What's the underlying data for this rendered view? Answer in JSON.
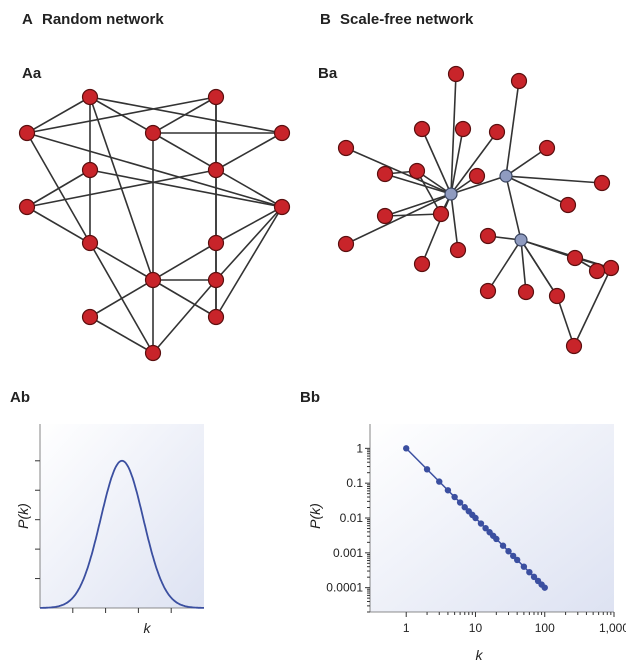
{
  "colors": {
    "node": "#c8242a",
    "hub": "#8f9bc0",
    "curve": "#3b4fa0",
    "panel_start": "#ffffff",
    "panel_end": "#dde2f2"
  },
  "panels": {
    "A": {
      "letter": "A",
      "title": "Random network"
    },
    "B": {
      "letter": "B",
      "title": "Scale-free network"
    },
    "Aa": {
      "label": "Aa"
    },
    "Ba": {
      "label": "Ba"
    },
    "Ab": {
      "label": "Ab",
      "xlabel": "k",
      "ylabel": "P(k)"
    },
    "Bb": {
      "label": "Bb",
      "xlabel": "k",
      "ylabel": "P(k)"
    }
  },
  "random_network": {
    "nodes": [
      {
        "id": "a1"
      },
      {
        "id": "a2"
      },
      {
        "id": "a3"
      },
      {
        "id": "a4"
      },
      {
        "id": "a5"
      },
      {
        "id": "a6"
      },
      {
        "id": "a7"
      },
      {
        "id": "a8"
      },
      {
        "id": "a9"
      },
      {
        "id": "a10"
      },
      {
        "id": "a11"
      },
      {
        "id": "a12"
      },
      {
        "id": "a13"
      },
      {
        "id": "a14"
      },
      {
        "id": "a15"
      },
      {
        "id": "a16"
      }
    ],
    "edges": [
      [
        "a1",
        "a4"
      ],
      [
        "a1",
        "a5"
      ],
      [
        "a1",
        "a6"
      ],
      [
        "a1",
        "a3"
      ],
      [
        "a1",
        "a12"
      ],
      [
        "a3",
        "a2"
      ],
      [
        "a3",
        "a5"
      ],
      [
        "a3",
        "a9"
      ],
      [
        "a3",
        "a16"
      ],
      [
        "a2",
        "a4"
      ],
      [
        "a2",
        "a7"
      ],
      [
        "a2",
        "a14"
      ],
      [
        "a4",
        "a9"
      ],
      [
        "a4",
        "a10"
      ],
      [
        "a5",
        "a7"
      ],
      [
        "a6",
        "a8"
      ],
      [
        "a6",
        "a9"
      ],
      [
        "a6",
        "a10"
      ],
      [
        "a7",
        "a8"
      ],
      [
        "a7",
        "a11"
      ],
      [
        "a8",
        "a12"
      ],
      [
        "a9",
        "a11"
      ],
      [
        "a9",
        "a13"
      ],
      [
        "a9",
        "a14"
      ],
      [
        "a10",
        "a16"
      ],
      [
        "a11",
        "a14"
      ],
      [
        "a11",
        "a15"
      ],
      [
        "a12",
        "a14"
      ],
      [
        "a12",
        "a13"
      ],
      [
        "a13",
        "a16"
      ],
      [
        "a15",
        "a16"
      ]
    ]
  },
  "scale_free_network": {
    "nodes": [
      {
        "id": "h1",
        "hub": true
      },
      {
        "id": "h2",
        "hub": true
      },
      {
        "id": "h3",
        "hub": true
      },
      {
        "id": "b1"
      },
      {
        "id": "b2"
      },
      {
        "id": "b3"
      },
      {
        "id": "b4"
      },
      {
        "id": "b5"
      },
      {
        "id": "b6"
      },
      {
        "id": "b7"
      },
      {
        "id": "b8"
      },
      {
        "id": "b9"
      },
      {
        "id": "b10"
      },
      {
        "id": "b11"
      },
      {
        "id": "b12"
      },
      {
        "id": "b13"
      },
      {
        "id": "b14"
      },
      {
        "id": "b15"
      },
      {
        "id": "b16"
      },
      {
        "id": "b17"
      },
      {
        "id": "b18"
      },
      {
        "id": "b19"
      },
      {
        "id": "b20"
      },
      {
        "id": "b21"
      },
      {
        "id": "b22"
      },
      {
        "id": "b23"
      },
      {
        "id": "b24"
      },
      {
        "id": "b25"
      },
      {
        "id": "b26"
      }
    ],
    "edges": [
      [
        "h1",
        "b1"
      ],
      [
        "h1",
        "b3"
      ],
      [
        "h1",
        "b4"
      ],
      [
        "h1",
        "b5"
      ],
      [
        "h1",
        "b6"
      ],
      [
        "h1",
        "b7"
      ],
      [
        "h1",
        "b8"
      ],
      [
        "h1",
        "b9"
      ],
      [
        "h1",
        "b10"
      ],
      [
        "h1",
        "b11"
      ],
      [
        "h1",
        "b12"
      ],
      [
        "h1",
        "b13"
      ],
      [
        "h1",
        "b14"
      ],
      [
        "h1",
        "h2"
      ],
      [
        "b11",
        "b12"
      ],
      [
        "b11",
        "b7"
      ],
      [
        "b12",
        "b8"
      ],
      [
        "h2",
        "b2"
      ],
      [
        "h2",
        "b15"
      ],
      [
        "h2",
        "b16"
      ],
      [
        "h2",
        "b17"
      ],
      [
        "h2",
        "h3"
      ],
      [
        "h3",
        "b18"
      ],
      [
        "h3",
        "b19"
      ],
      [
        "h3",
        "b20"
      ],
      [
        "h3",
        "b21"
      ],
      [
        "h3",
        "b22"
      ],
      [
        "h3",
        "b23"
      ],
      [
        "h3",
        "b26"
      ],
      [
        "b21",
        "b22"
      ],
      [
        "b21",
        "b25"
      ],
      [
        "b22",
        "b24"
      ],
      [
        "b23",
        "b26"
      ],
      [
        "b26",
        "b24"
      ]
    ]
  },
  "chart_data": [
    {
      "panel": "Ab",
      "type": "line",
      "title": "",
      "xlabel": "k",
      "ylabel": "P(k)",
      "description_shape": "bell",
      "x": [
        0,
        1,
        2,
        3,
        4,
        5,
        6,
        7,
        8,
        9,
        10,
        11,
        12,
        13,
        14,
        15,
        16,
        17,
        18,
        19,
        20
      ],
      "y": [
        0.0,
        0.0,
        0.002,
        0.01,
        0.04,
        0.11,
        0.25,
        0.47,
        0.73,
        0.93,
        1.0,
        0.93,
        0.73,
        0.47,
        0.25,
        0.11,
        0.04,
        0.01,
        0.002,
        0.0,
        0.0
      ],
      "xlim": [
        0,
        20
      ],
      "ylim": [
        0,
        1.25
      ],
      "x_ticks": [
        4,
        8,
        12,
        16
      ],
      "y_ticks": [
        0.2,
        0.4,
        0.6,
        0.8,
        1.0
      ],
      "grid": false
    },
    {
      "panel": "Bb",
      "type": "scatter",
      "title": "",
      "xlabel": "k",
      "ylabel": "P(k)",
      "log_x": true,
      "log_y": true,
      "xlim": [
        0.3,
        1000
      ],
      "ylim": [
        2e-05,
        5
      ],
      "x_tick_labels": [
        "1",
        "10",
        "100",
        "1,000"
      ],
      "y_tick_labels": [
        "1",
        "0.1",
        "0.01",
        "0.001",
        "0.0001"
      ],
      "x": [
        1,
        2,
        3,
        4,
        5,
        6,
        7,
        8,
        9,
        10,
        12,
        14,
        16,
        18,
        20,
        25,
        30,
        35,
        40,
        50,
        60,
        70,
        80,
        90,
        100
      ],
      "y": [
        1,
        0.25,
        0.111,
        0.0625,
        0.04,
        0.0278,
        0.0204,
        0.0156,
        0.0123,
        0.01,
        0.00694,
        0.0051,
        0.0039,
        0.00309,
        0.0025,
        0.0016,
        0.00111,
        0.000816,
        0.000625,
        0.0004,
        0.000278,
        0.000204,
        0.000156,
        0.000123,
        0.0001
      ],
      "grid": false
    }
  ]
}
